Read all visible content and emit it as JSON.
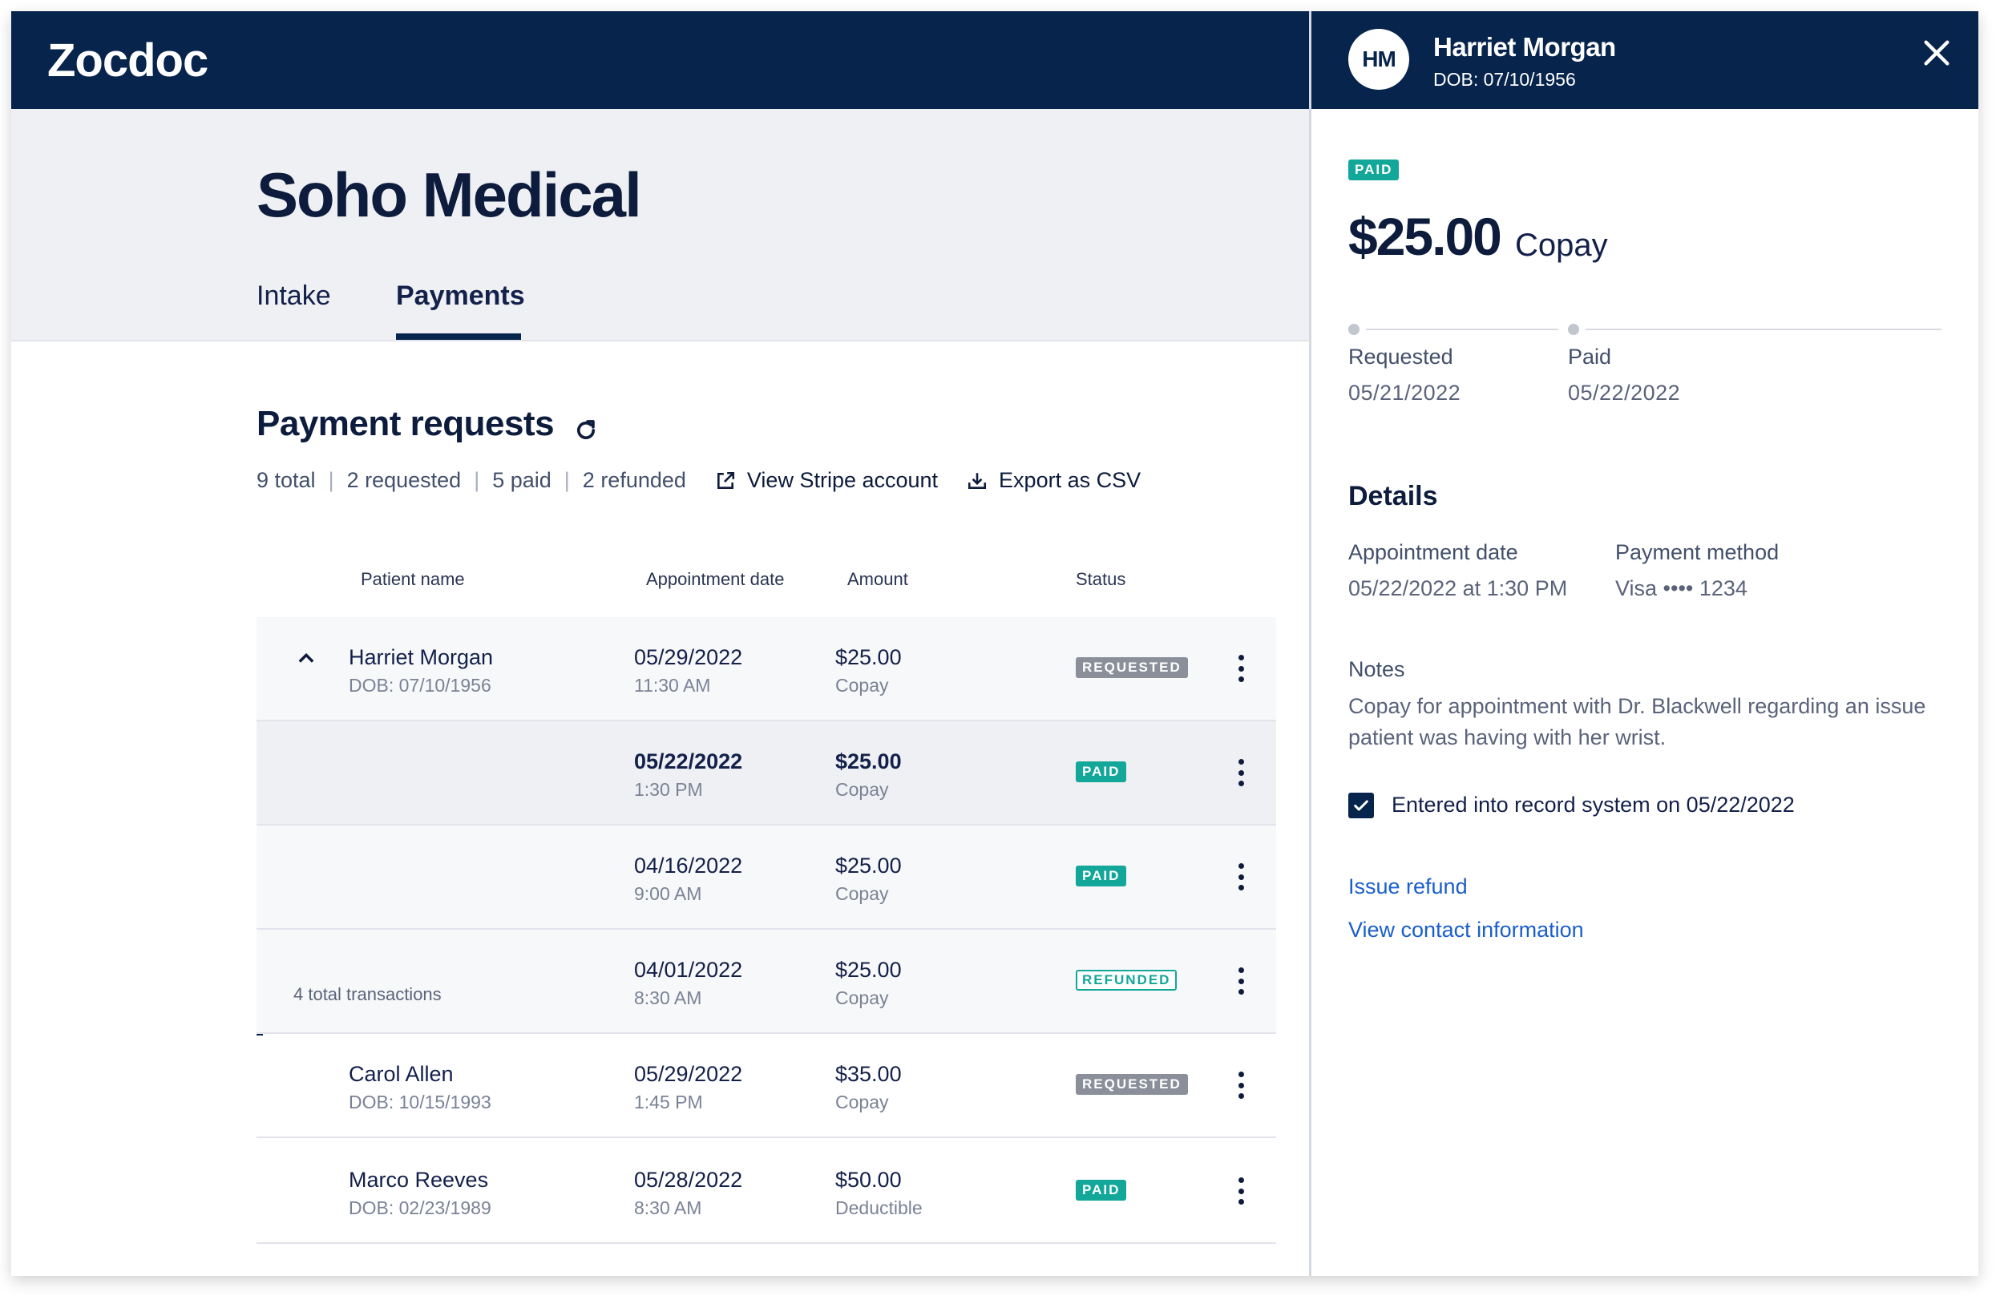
{
  "app": {
    "logo": "Zocdoc"
  },
  "practice": {
    "title": "Soho Medical"
  },
  "tabs": [
    {
      "label": "Intake",
      "active": false
    },
    {
      "label": "Payments",
      "active": true
    }
  ],
  "section": {
    "title": "Payment requests",
    "refresh_icon": "refresh-icon",
    "summary": [
      "9 total",
      "2 requested",
      "5 paid",
      "2 refunded"
    ],
    "actions": [
      {
        "label": "View Stripe account",
        "icon": "external-link-icon"
      },
      {
        "label": "Export as CSV",
        "icon": "download-icon"
      }
    ]
  },
  "table": {
    "headers": [
      "Patient name",
      "Appointment date",
      "Amount",
      "Status"
    ],
    "group_footer": "4 total transactions",
    "rows": [
      {
        "name": "Harriet Morgan",
        "dob": "DOB: 07/10/1956",
        "date": "05/29/2022",
        "time": "11:30 AM",
        "amount": "$25.00",
        "type": "Copay",
        "status": "REQUESTED"
      },
      {
        "name": "",
        "dob": "",
        "date": "05/22/2022",
        "time": "1:30 PM",
        "amount": "$25.00",
        "type": "Copay",
        "status": "PAID"
      },
      {
        "name": "",
        "dob": "",
        "date": "04/16/2022",
        "time": "9:00 AM",
        "amount": "$25.00",
        "type": "Copay",
        "status": "PAID"
      },
      {
        "name": "",
        "dob": "",
        "date": "04/01/2022",
        "time": "8:30 AM",
        "amount": "$25.00",
        "type": "Copay",
        "status": "REFUNDED"
      },
      {
        "name": "Carol Allen",
        "dob": "DOB: 10/15/1993",
        "date": "05/29/2022",
        "time": "1:45 PM",
        "amount": "$35.00",
        "type": "Copay",
        "status": "REQUESTED"
      },
      {
        "name": "Marco Reeves",
        "dob": "DOB: 02/23/1989",
        "date": "05/28/2022",
        "time": "8:30 AM",
        "amount": "$50.00",
        "type": "Deductible",
        "status": "PAID"
      }
    ]
  },
  "drawer": {
    "initials": "HM",
    "name": "Harriet Morgan",
    "dob": "DOB: 07/10/1956",
    "status": "PAID",
    "amount": "$25.00",
    "amount_type": "Copay",
    "timeline": [
      {
        "label": "Requested",
        "date": "05/21/2022"
      },
      {
        "label": "Paid",
        "date": "05/22/2022"
      }
    ],
    "details_title": "Details",
    "appointment_label": "Appointment date",
    "appointment_value": "05/22/2022 at 1:30 PM",
    "payment_label": "Payment method",
    "payment_value": "Visa  •••• 1234",
    "notes_label": "Notes",
    "notes_text": "Copay for appointment with Dr. Blackwell regarding an issue patient was having with her wrist.",
    "checkbox_label": "Entered into record system on 05/22/2022",
    "checkbox_checked": true,
    "links": [
      "Issue refund",
      "View contact information"
    ]
  },
  "colors": {
    "navy": "#06244c",
    "paid_green": "#13a79a",
    "requested_gray": "#8a8f99",
    "link_blue": "#1a5fcc"
  }
}
